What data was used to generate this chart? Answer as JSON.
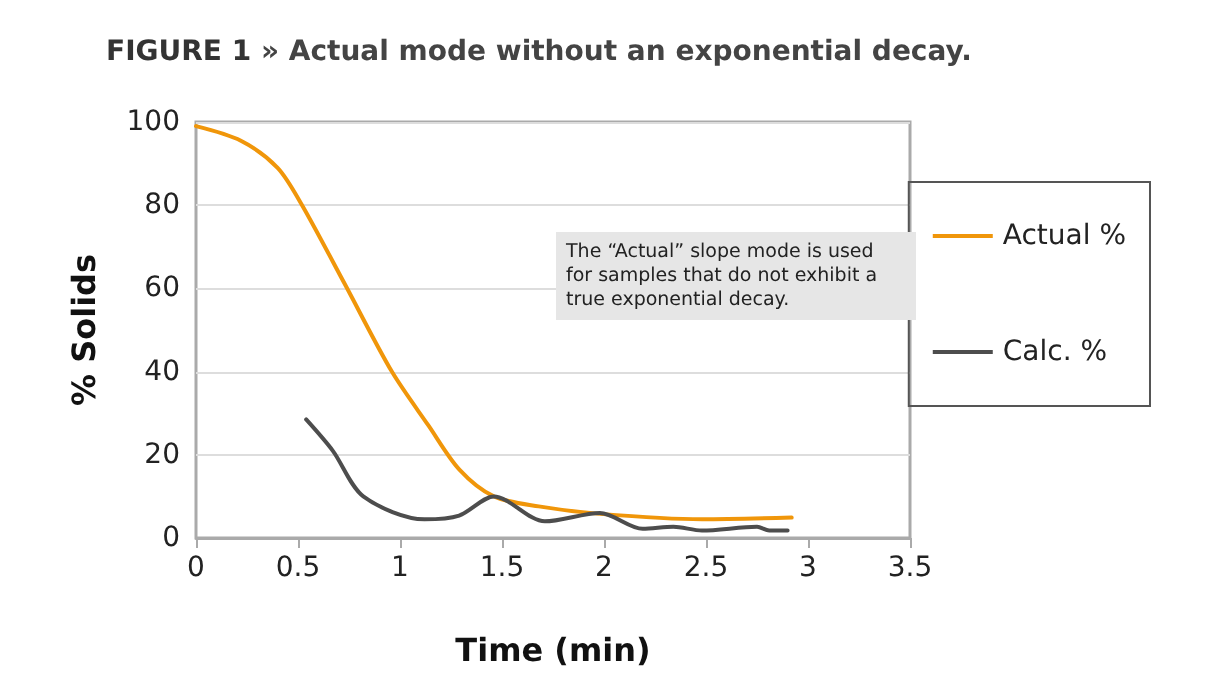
{
  "chart_data": {
    "type": "line",
    "title": "FIGURE 1",
    "subtitle": "» Actual mode without an exponential decay.",
    "xlabel": "Time (min)",
    "ylabel": "% Solids",
    "annotations": [
      "The “Actual” slope mode is used for samples that do not exhibit a true exponential decay."
    ],
    "series": [
      {
        "name": "Actual %",
        "color": "#f0960a",
        "x": [
          0,
          0.22,
          0.4,
          0.52,
          0.73,
          0.96,
          1.14,
          1.29,
          1.46,
          1.68,
          1.98,
          2.48,
          2.92
        ],
        "values": [
          99,
          95.5,
          89,
          80,
          61,
          40,
          27,
          16.5,
          10,
          7.6,
          5.8,
          4.5,
          4.9
        ]
      },
      {
        "name": "Calc. %",
        "color": "#4d4d4d",
        "x": [
          0.54,
          0.67,
          0.82,
          1.12,
          1.29,
          1.46,
          1.71,
          1.98,
          2.19,
          2.34,
          2.48,
          2.75,
          2.81,
          2.9
        ],
        "values": [
          28.5,
          21,
          10,
          4.5,
          5.4,
          10,
          4,
          6,
          2.2,
          2.7,
          1.8,
          2.7,
          1.8,
          1.8
        ]
      }
    ],
    "xlim": [
      0,
      3.5
    ],
    "xticks": [
      0,
      0.5,
      1,
      1.5,
      2,
      2.5,
      3,
      3.5
    ],
    "ylim": [
      0,
      100
    ],
    "yticks": [
      0,
      20,
      40,
      60,
      80,
      100
    ],
    "grid": "y",
    "legend": "right",
    "marker": "none",
    "line_style": "solid"
  }
}
